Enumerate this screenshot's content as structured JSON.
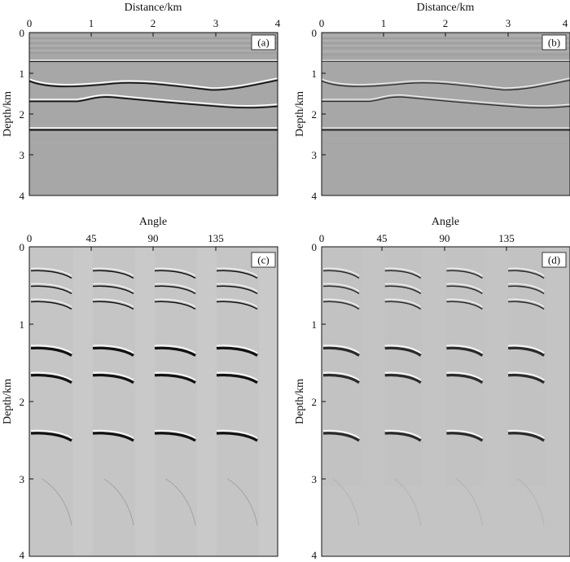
{
  "panels": [
    {
      "id": "a",
      "tag": "(a)",
      "x_title": "Distance/km",
      "y_title": "Depth/km",
      "x_ticks": [
        "0",
        "1",
        "2",
        "3",
        "4"
      ],
      "y_ticks": [
        "0",
        "1",
        "2",
        "3",
        "4"
      ],
      "background": "#a7a7a7"
    },
    {
      "id": "b",
      "tag": "(b)",
      "x_title": "Distance/km",
      "y_title": "Depth/km",
      "x_ticks": [
        "0",
        "1",
        "2",
        "3",
        "4"
      ],
      "y_ticks": [
        "0",
        "1",
        "2",
        "3",
        "4"
      ],
      "background": "#a7a7a7"
    },
    {
      "id": "c",
      "tag": "(c)",
      "x_title": "Angle",
      "y_title": "Depth/km",
      "x_ticks": [
        "0",
        "45",
        "90",
        "135"
      ],
      "y_ticks": [
        "0",
        "1",
        "2",
        "3",
        "4"
      ],
      "background": "#c9c9c9"
    },
    {
      "id": "d",
      "tag": "(d)",
      "x_title": "Angle",
      "y_title": "Depth/km",
      "x_ticks": [
        "0",
        "45",
        "90",
        "135"
      ],
      "y_ticks": [
        "0",
        "1",
        "2",
        "3",
        "4"
      ],
      "background": "#c4c4c4"
    }
  ],
  "reflector_depths_km": [
    0.3,
    0.5,
    0.7,
    1.3,
    1.65,
    2.4
  ],
  "angle_gather_starts_deg": [
    0,
    45,
    90,
    135
  ]
}
